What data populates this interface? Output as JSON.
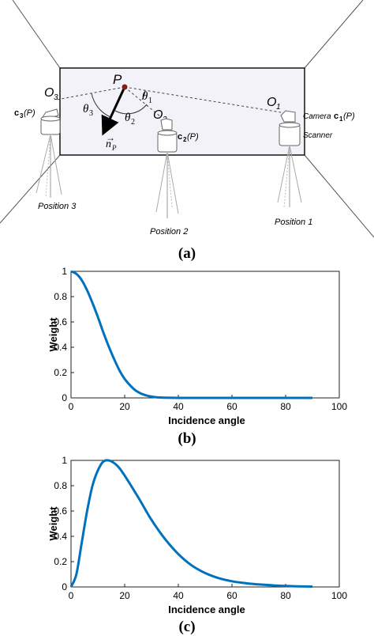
{
  "scene": {
    "point_label": "P",
    "normal_label": "n",
    "normal_subscript": "P",
    "theta1": "θ",
    "theta1_sub": "1",
    "theta2": "θ",
    "theta2_sub": "2",
    "theta3": "θ",
    "theta3_sub": "3",
    "o1": "O",
    "o1_sub": "1",
    "o2": "O",
    "o2_sub": "2",
    "o3": "O",
    "o3_sub": "3",
    "camera_label": "Camera",
    "scanner_label": "Scanner",
    "c1_pre": "c",
    "c1_sub": "1",
    "c1_post": "(P)",
    "c2_pre": "c",
    "c2_sub": "2",
    "c2_post": "(P)",
    "c3_pre": "c",
    "c3_sub": "3",
    "c3_post": "(P)",
    "position1": "Position 1",
    "position2": "Position 2",
    "position3": "Position 3",
    "caption": "(a)",
    "colors": {
      "wall": "#f2f2f8",
      "point": "#8b1a1a",
      "line": "#000000"
    }
  },
  "chart_b": {
    "caption": "(b)",
    "ylabel": "Weight",
    "xlabel": "Incidence angle",
    "x_ticks": [
      "0",
      "20",
      "40",
      "60",
      "80",
      "100"
    ],
    "y_ticks": [
      "0",
      "0.2",
      "0.4",
      "0.6",
      "0.8",
      "1"
    ]
  },
  "chart_c": {
    "caption": "(c)",
    "ylabel": "Weight",
    "xlabel": "Incidence angle",
    "x_ticks": [
      "0",
      "20",
      "40",
      "60",
      "80",
      "100"
    ],
    "y_ticks": [
      "0",
      "0.2",
      "0.4",
      "0.6",
      "0.8",
      "1"
    ]
  },
  "chart_data": [
    {
      "type": "line",
      "xlabel": "Incidence angle",
      "ylabel": "Weight",
      "xlim": [
        0,
        100
      ],
      "ylim": [
        0,
        1
      ],
      "grid": false,
      "color": "#0072BD",
      "x": [
        0,
        2,
        4,
        6,
        8,
        10,
        12,
        14,
        16,
        18,
        20,
        22,
        24,
        26,
        28,
        30,
        32,
        35,
        40,
        50,
        60,
        70,
        80,
        90
      ],
      "y": [
        1.0,
        0.98,
        0.93,
        0.85,
        0.75,
        0.64,
        0.52,
        0.41,
        0.31,
        0.22,
        0.15,
        0.1,
        0.06,
        0.035,
        0.02,
        0.01,
        0.005,
        0.002,
        0.0,
        0.0,
        0.0,
        0.0,
        0.0,
        0.0
      ]
    },
    {
      "type": "line",
      "xlabel": "Incidence angle",
      "ylabel": "Weight",
      "xlim": [
        0,
        100
      ],
      "ylim": [
        0,
        1
      ],
      "grid": false,
      "color": "#0072BD",
      "x": [
        0,
        2,
        4,
        6,
        8,
        10,
        12,
        14,
        16,
        18,
        20,
        25,
        30,
        35,
        40,
        45,
        50,
        55,
        60,
        65,
        70,
        75,
        80,
        85,
        90
      ],
      "y": [
        0.0,
        0.1,
        0.35,
        0.6,
        0.8,
        0.92,
        0.99,
        1.0,
        0.98,
        0.94,
        0.88,
        0.71,
        0.53,
        0.38,
        0.26,
        0.17,
        0.11,
        0.07,
        0.045,
        0.03,
        0.02,
        0.013,
        0.008,
        0.005,
        0.003
      ]
    }
  ]
}
